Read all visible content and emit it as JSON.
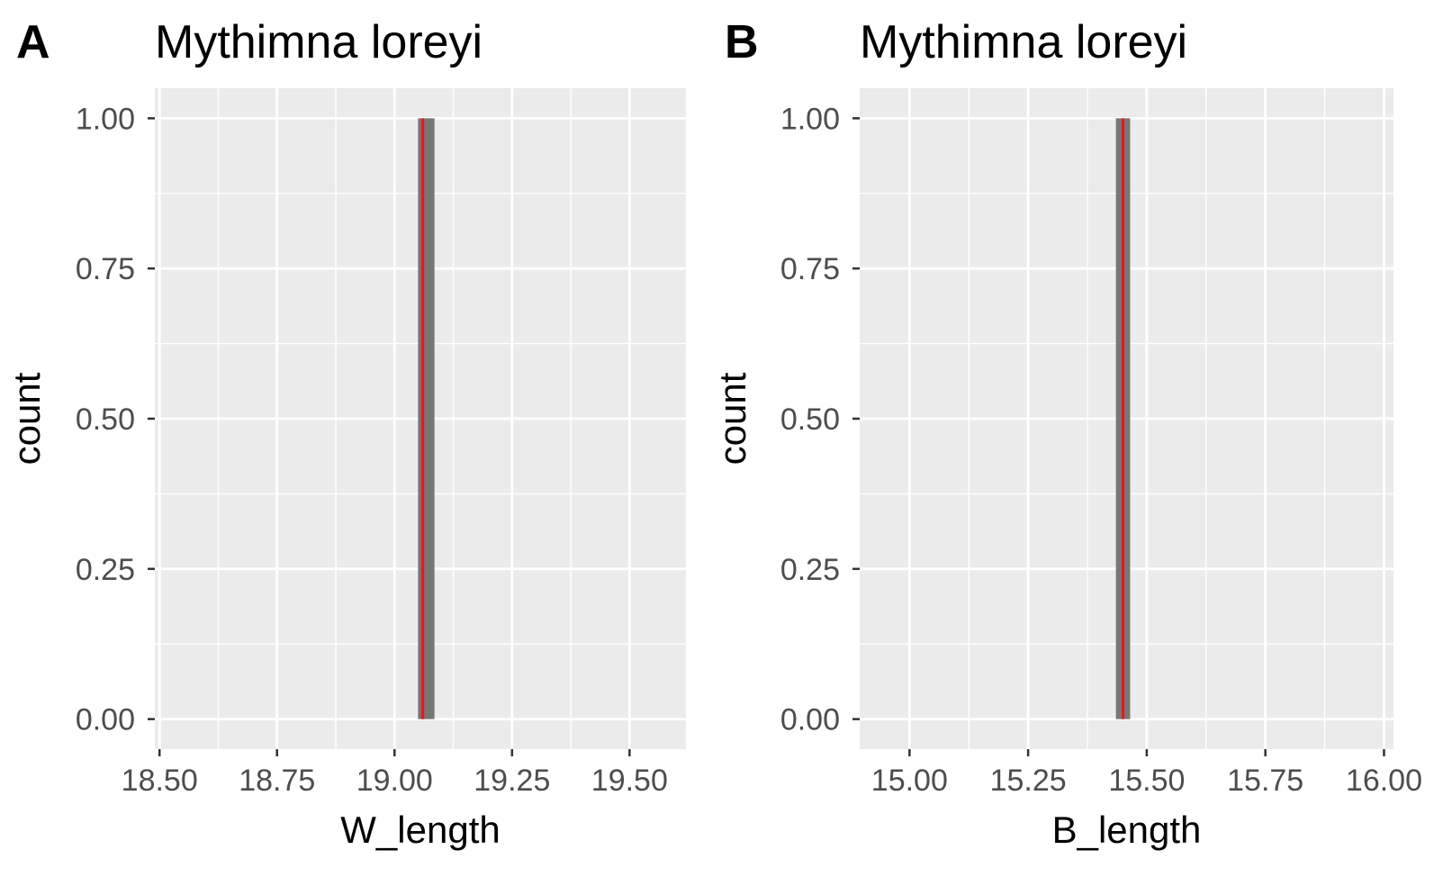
{
  "chart_data": [
    {
      "panel": "A",
      "type": "bar",
      "title": "Mythimna loreyi",
      "xlabel": "W_length",
      "ylabel": "count",
      "xlim": [
        18.49,
        19.62
      ],
      "ylim": [
        -0.05,
        1.05
      ],
      "xticks": [
        18.5,
        18.75,
        19.0,
        19.25,
        19.5
      ],
      "xtick_labels": [
        "18.50",
        "18.75",
        "19.00",
        "19.25",
        "19.50"
      ],
      "yticks": [
        0,
        0.25,
        0.5,
        0.75,
        1.0
      ],
      "ytick_labels": [
        "0.00",
        "0.25",
        "0.50",
        "0.75",
        "1.00"
      ],
      "bars": [
        {
          "xmin": 19.05,
          "xmax": 19.085,
          "count": 1
        }
      ],
      "reference_line": {
        "x": 19.06,
        "color": "#e41a1c"
      },
      "bar_color": "#777777",
      "panel_background": "#ebebeb",
      "grid": true
    },
    {
      "panel": "B",
      "type": "bar",
      "title": "Mythimna loreyi",
      "xlabel": "B_length",
      "ylabel": "count",
      "xlim": [
        14.895,
        16.02
      ],
      "ylim": [
        -0.05,
        1.05
      ],
      "xticks": [
        15.0,
        15.25,
        15.5,
        15.75,
        16.0
      ],
      "xtick_labels": [
        "15.00",
        "15.25",
        "15.50",
        "15.75",
        "16.00"
      ],
      "yticks": [
        0,
        0.25,
        0.5,
        0.75,
        1.0
      ],
      "ytick_labels": [
        "0.00",
        "0.25",
        "0.50",
        "0.75",
        "1.00"
      ],
      "bars": [
        {
          "xmin": 15.435,
          "xmax": 15.465,
          "count": 1
        }
      ],
      "reference_line": {
        "x": 15.45,
        "color": "#e41a1c"
      },
      "bar_color": "#777777",
      "panel_background": "#ebebeb",
      "grid": true
    }
  ]
}
